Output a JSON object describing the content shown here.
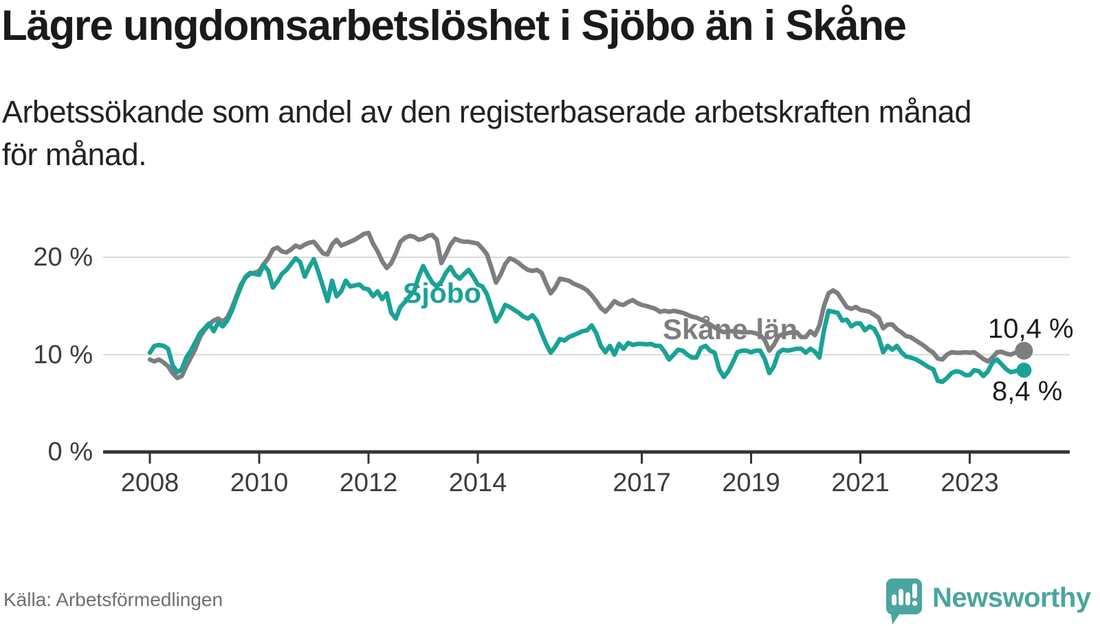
{
  "header": {
    "title": "Lägre ungdomsarbetslöshet i Sjöbo än i Skåne",
    "subtitle_lines": [
      "Arbetssökande som andel av den registerbaserade arbetskraften månad",
      "för månad."
    ]
  },
  "footer": {
    "source": "Källa: Arbetsförmedlingen",
    "logo_text": "Newsworthy",
    "logo_color": "#4aa5a0"
  },
  "chart_data": {
    "type": "line",
    "title": "Lägre ungdomsarbetslöshet i Sjöbo än i Skåne",
    "subtitle": "Arbetssökande som andel av den registerbaserade arbetskraften månad för månad.",
    "unit": "%",
    "x_interval": "monthly",
    "x_start": "2008-01",
    "x_end": "2023-12",
    "x_tick_labels": [
      "2008",
      "2010",
      "2012",
      "2014",
      "2017",
      "2019",
      "2021",
      "2023"
    ],
    "x_tick_years": [
      2008,
      2010,
      2012,
      2014,
      2017,
      2019,
      2021,
      2023
    ],
    "y_ticks": [
      0,
      10,
      20
    ],
    "y_tick_labels": [
      "0 %",
      "10 %",
      "20 %"
    ],
    "ylim": [
      0,
      24
    ],
    "grid": "horizontal",
    "grid_color": "#d9d9d9",
    "axis_color": "#333333",
    "legend_position": "inline-labels",
    "series": [
      {
        "name": "Skåne län",
        "color": "#7d7e80",
        "end_value": 10.4,
        "end_label": "10,4 %",
        "values": [
          9.5,
          9.3,
          9.5,
          9.2,
          8.8,
          8.1,
          7.6,
          7.8,
          8.8,
          9.7,
          10.6,
          11.8,
          12.5,
          13.1,
          13.5,
          13.7,
          13.4,
          13.8,
          14.8,
          16.0,
          17.2,
          17.9,
          18.3,
          18.4,
          18.6,
          19.3,
          19.9,
          20.8,
          21.0,
          20.6,
          20.5,
          20.8,
          21.2,
          21.0,
          21.3,
          21.5,
          21.6,
          21.0,
          20.4,
          20.3,
          21.3,
          21.8,
          21.2,
          21.4,
          21.6,
          21.8,
          22.1,
          22.4,
          22.5,
          21.4,
          20.6,
          19.6,
          18.9,
          19.4,
          20.4,
          21.6,
          22.0,
          22.2,
          22.1,
          21.8,
          21.9,
          22.2,
          22.3,
          21.8,
          19.4,
          20.3,
          21.3,
          21.9,
          21.7,
          21.6,
          21.6,
          21.5,
          21.4,
          20.9,
          20.3,
          18.9,
          17.4,
          18.2,
          19.3,
          19.9,
          19.7,
          19.4,
          19.0,
          18.7,
          18.6,
          18.7,
          18.4,
          17.3,
          16.3,
          16.9,
          17.8,
          17.7,
          17.6,
          17.3,
          17.1,
          16.9,
          16.6,
          16.1,
          15.5,
          14.8,
          14.4,
          14.9,
          15.5,
          15.2,
          15.1,
          15.4,
          15.6,
          15.3,
          15.1,
          15.0,
          14.85,
          14.7,
          14.4,
          14.5,
          14.4,
          14.5,
          14.4,
          14.3,
          14.1,
          13.9,
          13.8,
          13.6,
          13.4,
          13.1,
          12.8,
          12.5,
          12.3,
          12.4,
          12.4,
          12.35,
          12.3,
          12.3,
          12.3,
          12.2,
          12.0,
          11.5,
          10.4,
          11.0,
          11.9,
          12.1,
          12.2,
          12.3,
          12.3,
          11.8,
          11.8,
          12.4,
          12.0,
          13.0,
          15.0,
          16.3,
          16.6,
          16.3,
          15.6,
          14.9,
          14.7,
          14.9,
          14.6,
          14.5,
          14.4,
          14.1,
          13.8,
          12.7,
          13.1,
          13.1,
          12.6,
          12.3,
          11.9,
          11.8,
          11.5,
          11.2,
          10.9,
          10.5,
          10.2,
          9.6,
          9.5,
          10.0,
          10.25,
          10.2,
          10.2,
          10.25,
          10.2,
          10.25,
          9.9,
          9.55,
          9.3,
          9.7,
          10.25,
          10.3,
          10.1,
          10.0,
          10.2,
          10.4
        ]
      },
      {
        "name": "Sjöbo",
        "color": "#1aa296",
        "end_value": 8.4,
        "end_label": "8,4 %",
        "values": [
          10.2,
          10.9,
          11.0,
          10.9,
          10.6,
          8.9,
          8.2,
          8.5,
          9.7,
          10.4,
          11.3,
          12.2,
          12.7,
          13.2,
          12.4,
          13.3,
          12.9,
          13.5,
          14.5,
          15.8,
          17.0,
          18.0,
          18.4,
          18.3,
          18.2,
          19.2,
          18.6,
          16.9,
          17.5,
          18.3,
          18.7,
          19.3,
          19.9,
          19.5,
          18.0,
          19.0,
          19.8,
          18.5,
          17.0,
          15.5,
          17.6,
          16.0,
          16.5,
          17.6,
          17.0,
          17.1,
          17.2,
          16.8,
          16.7,
          16.0,
          16.5,
          15.7,
          16.3,
          14.3,
          13.7,
          14.9,
          15.4,
          16.0,
          16.5,
          18.0,
          19.1,
          18.2,
          17.4,
          17.0,
          17.5,
          18.4,
          19.0,
          18.2,
          17.8,
          18.3,
          18.7,
          18.0,
          17.2,
          17.0,
          16.2,
          14.8,
          13.4,
          14.1,
          15.1,
          14.9,
          14.6,
          14.3,
          13.9,
          13.7,
          14.05,
          13.45,
          12.2,
          11.1,
          10.2,
          10.8,
          11.6,
          11.45,
          11.8,
          12.0,
          12.2,
          12.4,
          12.5,
          13.0,
          12.2,
          10.9,
          10.25,
          10.9,
          10.0,
          11.1,
          10.6,
          11.2,
          11.0,
          11.1,
          11.1,
          11.05,
          11.1,
          10.9,
          10.9,
          10.3,
          9.5,
          10.0,
          10.5,
          10.4,
          10.0,
          9.7,
          9.7,
          10.7,
          10.9,
          10.4,
          10.2,
          8.5,
          7.7,
          8.3,
          9.2,
          10.25,
          10.4,
          10.4,
          10.25,
          10.4,
          10.4,
          9.55,
          8.1,
          8.8,
          10.2,
          10.5,
          10.4,
          10.5,
          10.6,
          10.6,
          10.2,
          10.6,
          10.3,
          9.7,
          12.5,
          14.5,
          14.4,
          14.3,
          13.5,
          13.6,
          12.9,
          13.2,
          13.2,
          12.5,
          12.9,
          12.65,
          11.8,
          10.25,
          10.9,
          10.5,
          10.9,
          10.25,
          9.8,
          9.7,
          9.55,
          9.3,
          9.0,
          8.7,
          8.5,
          7.3,
          7.2,
          7.6,
          8.1,
          8.3,
          8.2,
          7.9,
          7.9,
          8.4,
          8.3,
          7.8,
          8.3,
          9.2,
          9.5,
          9.0,
          8.5,
          8.2,
          8.3,
          8.4
        ]
      }
    ],
    "inline_series_labels": [
      {
        "text": "Sjöbo",
        "series": "Sjöbo"
      },
      {
        "text": "Skåne län",
        "series": "Skåne län"
      }
    ],
    "source": "Källa: Arbetsförmedlingen"
  }
}
